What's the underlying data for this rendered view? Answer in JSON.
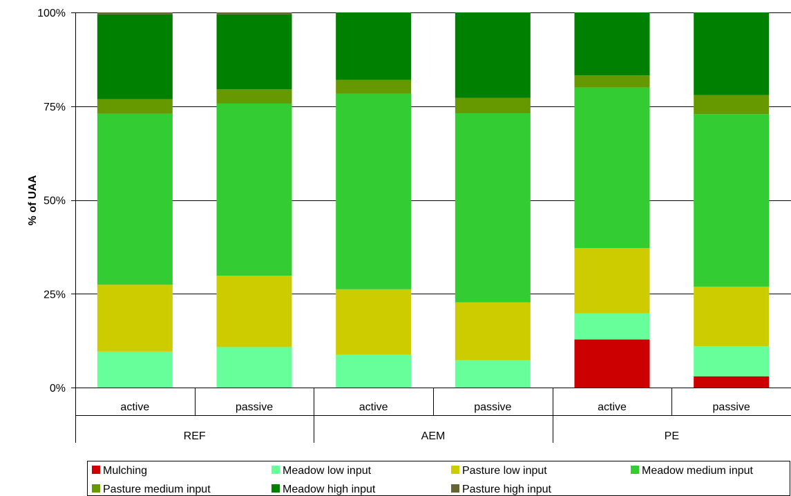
{
  "chart_data": {
    "type": "bar",
    "stacked": "percent",
    "ylabel": "% of UAA",
    "ylim": [
      0,
      100
    ],
    "yticks": [
      "0%",
      "25%",
      "50%",
      "75%",
      "100%"
    ],
    "grid": true,
    "legend_position": "bottom",
    "groups": [
      "REF",
      "AEM",
      "PE"
    ],
    "categories": [
      "active",
      "passive",
      "active",
      "passive",
      "active",
      "passive"
    ],
    "category_group": [
      "REF",
      "REF",
      "AEM",
      "AEM",
      "PE",
      "PE"
    ],
    "series": [
      {
        "name": "Mulching",
        "color": "#cc0000",
        "values": [
          0,
          0,
          0,
          0,
          12.8,
          3.0
        ]
      },
      {
        "name": "Meadow low input",
        "color": "#66ff99",
        "values": [
          9.6,
          10.8,
          8.7,
          7.3,
          7.0,
          8.0
        ]
      },
      {
        "name": "Pasture low input",
        "color": "#cccc00",
        "values": [
          17.8,
          19.0,
          17.5,
          15.4,
          17.4,
          15.9
        ]
      },
      {
        "name": "Meadow medium input",
        "color": "#33cc33",
        "values": [
          45.6,
          45.9,
          52.1,
          50.4,
          42.8,
          46.0
        ]
      },
      {
        "name": "Pasture medium input",
        "color": "#669900",
        "values": [
          3.9,
          3.8,
          3.7,
          4.1,
          3.2,
          5.1
        ]
      },
      {
        "name": "Meadow high input",
        "color": "#008000",
        "values": [
          22.6,
          20.0,
          18.0,
          22.8,
          16.8,
          22.0
        ]
      },
      {
        "name": "Pasture high input",
        "color": "#666633",
        "values": [
          0.5,
          0.5,
          0,
          0,
          0,
          0
        ]
      }
    ]
  }
}
